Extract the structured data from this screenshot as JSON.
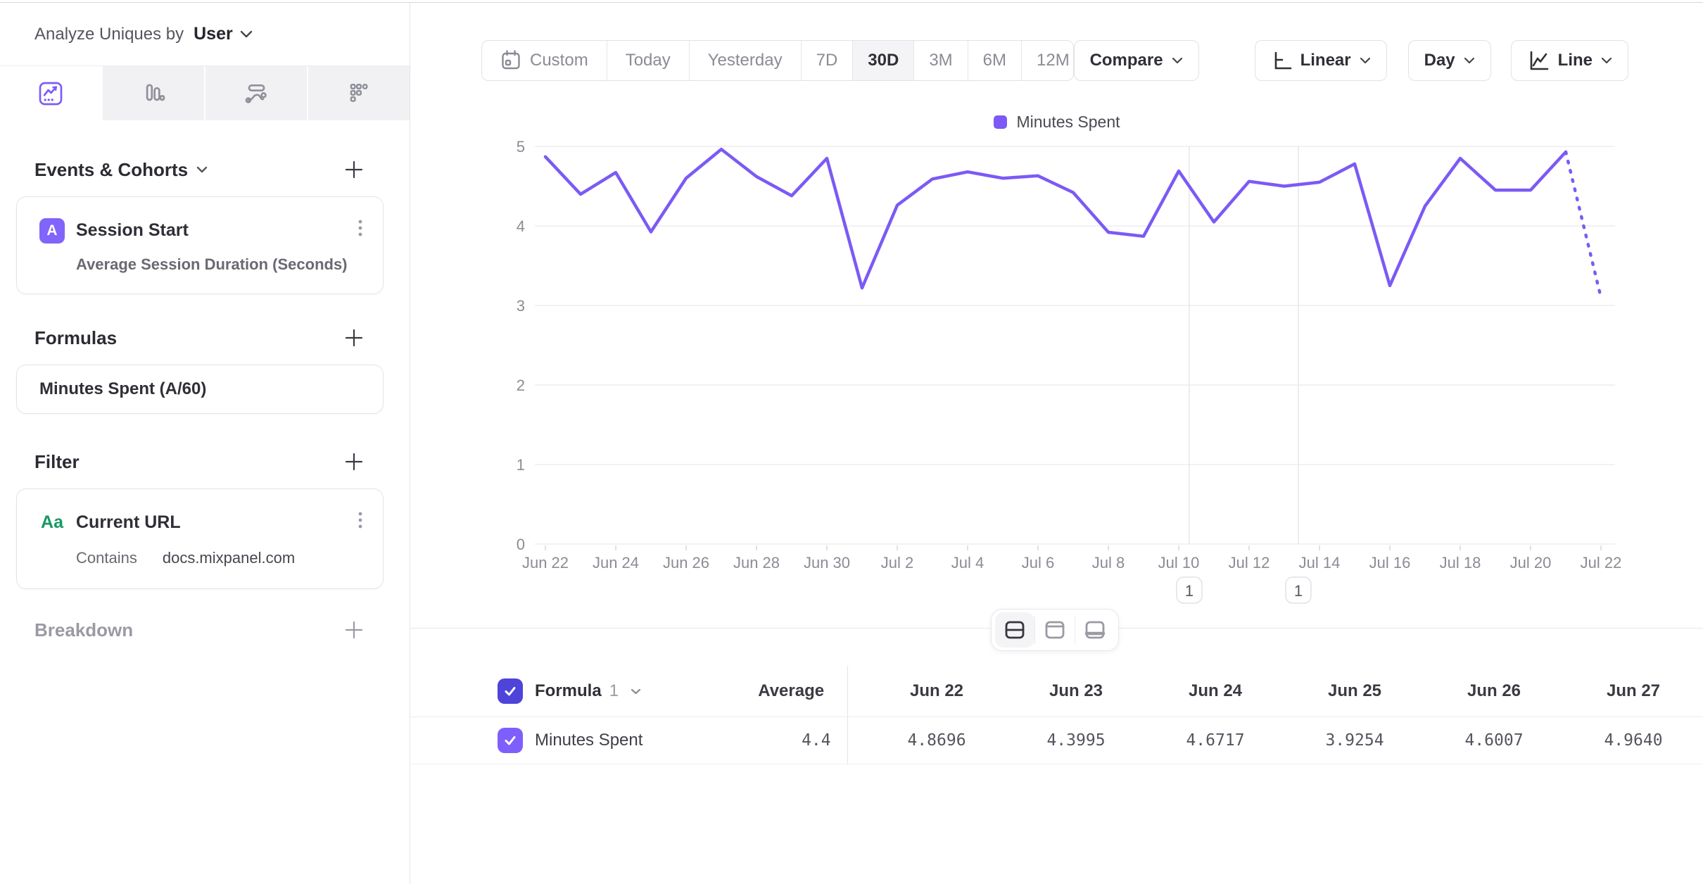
{
  "sidebar": {
    "analyze_label": "Analyze Uniques by",
    "analyze_value": "User",
    "sections": {
      "events_title": "Events & Cohorts",
      "formulas_title": "Formulas",
      "filter_title": "Filter",
      "breakdown_title": "Breakdown"
    },
    "event_card": {
      "badge": "A",
      "title": "Session Start",
      "subtitle": "Average Session Duration (Seconds)"
    },
    "formula_card": {
      "title": "Minutes Spent (A/60)"
    },
    "filter_card": {
      "badge": "Aa",
      "title": "Current URL",
      "operator": "Contains",
      "value": "docs.mixpanel.com"
    }
  },
  "toolbar": {
    "date_ranges": [
      "Custom",
      "Today",
      "Yesterday",
      "7D",
      "30D",
      "3M",
      "6M",
      "12M"
    ],
    "active_range": "30D",
    "compare_label": "Compare",
    "scale_label": "Linear",
    "interval_label": "Day",
    "chart_type_label": "Line"
  },
  "chart_data": {
    "type": "line",
    "categories": [
      "Jun 22",
      "Jun 23",
      "Jun 24",
      "Jun 25",
      "Jun 26",
      "Jun 27",
      "Jun 28",
      "Jun 29",
      "Jun 30",
      "Jul 1",
      "Jul 2",
      "Jul 3",
      "Jul 4",
      "Jul 5",
      "Jul 6",
      "Jul 7",
      "Jul 8",
      "Jul 9",
      "Jul 10",
      "Jul 11",
      "Jul 12",
      "Jul 13",
      "Jul 14",
      "Jul 15",
      "Jul 16",
      "Jul 17",
      "Jul 18",
      "Jul 19",
      "Jul 20",
      "Jul 21",
      "Jul 22"
    ],
    "series": [
      {
        "name": "Minutes Spent",
        "values": [
          4.8696,
          4.3995,
          4.6717,
          3.9254,
          4.6007,
          4.964,
          4.62,
          4.38,
          4.85,
          3.22,
          4.26,
          4.59,
          4.68,
          4.6,
          4.63,
          4.42,
          3.92,
          3.87,
          4.69,
          4.05,
          4.56,
          4.5,
          4.55,
          4.78,
          3.25,
          4.25,
          4.85,
          4.45,
          4.45,
          4.93,
          3.1
        ]
      }
    ],
    "ylim": [
      0,
      5
    ],
    "yticks": [
      0,
      1,
      2,
      3,
      4,
      5
    ],
    "x_label_every": 2,
    "grid": true,
    "legend_position": "top",
    "line_color": "#7b5af5",
    "last_segment_dotted": true,
    "annotations": [
      {
        "label": "1",
        "day": 18.3
      },
      {
        "label": "1",
        "day": 21.4
      }
    ]
  },
  "table": {
    "group_label": "Formula",
    "group_index": "1",
    "average_label": "Average",
    "row_label": "Minutes Spent",
    "average_value": "4.4",
    "date_columns": [
      "Jun 22",
      "Jun 23",
      "Jun 24",
      "Jun 25",
      "Jun 26",
      "Jun 27"
    ],
    "values": [
      "4.8696",
      "4.3995",
      "4.6717",
      "3.9254",
      "4.6007",
      "4.9640"
    ]
  },
  "colors": {
    "accent_purple": "#7b5af5",
    "badge_purple": "#8164fa",
    "checkbox_dark": "#4f44d9",
    "checkbox_light": "#7f5ffc",
    "filter_green": "#169a62",
    "grid_line": "#ededf1",
    "axis_text": "#8b8b95"
  }
}
